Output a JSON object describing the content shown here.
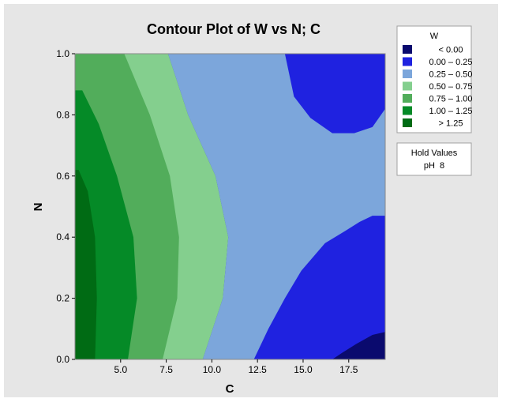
{
  "chart_data": {
    "type": "contour",
    "title": "Contour Plot of W vs N; C",
    "xlabel": "C",
    "ylabel": "N",
    "xlim": [
      2.5,
      19.5
    ],
    "ylim": [
      0.0,
      1.0
    ],
    "x_ticks": [
      "5.0",
      "7.5",
      "10.0",
      "12.5",
      "15.0",
      "17.5"
    ],
    "y_ticks": [
      "0.0",
      "0.2",
      "0.4",
      "0.6",
      "0.8",
      "1.0"
    ],
    "z_name": "W",
    "levels": [
      {
        "label": "< 0.00",
        "color": "#0a0a6e"
      },
      {
        "label": "0.00 – 0.25",
        "color": "#1f22e0"
      },
      {
        "label": "0.25 – 0.50",
        "color": "#7ca6db"
      },
      {
        "label": "0.50 – 0.75",
        "color": "#84cf8e"
      },
      {
        "label": "0.75 – 1.00",
        "color": "#52ad5b"
      },
      {
        "label": "1.00 – 1.25",
        "color": "#058a27"
      },
      {
        "label": "> 1.25",
        "color": "#006b14"
      }
    ],
    "regions": [
      {
        "level": 1,
        "points": [
          [
            2.5,
            0
          ],
          [
            9.5,
            0
          ],
          [
            10.6,
            0.2
          ],
          [
            10.9,
            0.4
          ],
          [
            10.2,
            0.6
          ],
          [
            8.7,
            0.8
          ],
          [
            7.6,
            1
          ],
          [
            2.5,
            1
          ]
        ]
      },
      {
        "level": 1,
        "points": [
          [
            14,
            1
          ],
          [
            19.5,
            1
          ],
          [
            19.5,
            0.82
          ],
          [
            18.8,
            0.76
          ],
          [
            17.8,
            0.74
          ],
          [
            16.6,
            0.74
          ],
          [
            15.4,
            0.79
          ],
          [
            14.5,
            0.86
          ]
        ]
      },
      {
        "level": 1,
        "points": [
          [
            12.3,
            0
          ],
          [
            19.5,
            0
          ],
          [
            19.5,
            0.47
          ],
          [
            18.8,
            0.47
          ],
          [
            18.1,
            0.45
          ],
          [
            17.3,
            0.42
          ],
          [
            16.2,
            0.38
          ],
          [
            14.9,
            0.29
          ],
          [
            14,
            0.2
          ],
          [
            13.1,
            0.1
          ]
        ]
      },
      {
        "level": 3,
        "points": [
          [
            2.5,
            0
          ],
          [
            9.5,
            0
          ],
          [
            10.6,
            0.2
          ],
          [
            10.9,
            0.4
          ],
          [
            10.2,
            0.6
          ],
          [
            8.7,
            0.8
          ],
          [
            7.6,
            1
          ],
          [
            2.5,
            1
          ]
        ]
      },
      {
        "level": 4,
        "points": [
          [
            2.5,
            0
          ],
          [
            7.3,
            0
          ],
          [
            8.1,
            0.2
          ],
          [
            8.2,
            0.4
          ],
          [
            7.7,
            0.6
          ],
          [
            6.6,
            0.8
          ],
          [
            5.2,
            1
          ],
          [
            2.5,
            1
          ]
        ]
      },
      {
        "level": 5,
        "points": [
          [
            2.5,
            0
          ],
          [
            5.4,
            0
          ],
          [
            5.9,
            0.2
          ],
          [
            5.7,
            0.4
          ],
          [
            4.8,
            0.6
          ],
          [
            3.8,
            0.77
          ],
          [
            2.9,
            0.88
          ],
          [
            2.5,
            0.88
          ]
        ]
      },
      {
        "level": 6,
        "points": [
          [
            2.5,
            0
          ],
          [
            3.6,
            0
          ],
          [
            3.7,
            0.2
          ],
          [
            3.6,
            0.4
          ],
          [
            3.2,
            0.55
          ],
          [
            2.7,
            0.62
          ],
          [
            2.5,
            0.62
          ]
        ]
      },
      {
        "level": 0,
        "points": [
          [
            16.6,
            0
          ],
          [
            19.5,
            0
          ],
          [
            19.5,
            0.09
          ],
          [
            18.8,
            0.08
          ],
          [
            17.9,
            0.05
          ],
          [
            17.1,
            0.02
          ]
        ]
      }
    ],
    "hold_values": {
      "title": "Hold Values",
      "entries": [
        "pH  8"
      ]
    }
  }
}
